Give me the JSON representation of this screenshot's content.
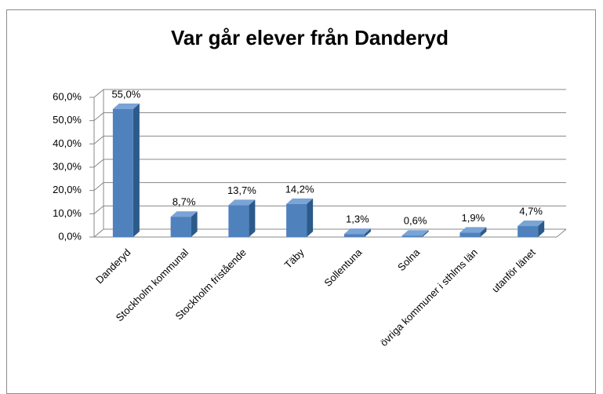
{
  "chart_data": {
    "type": "bar3d",
    "title": "Var går elever från Danderyd",
    "categories": [
      "Danderyd",
      "Stockholm kommunal",
      "Stockholm fristående",
      "Täby",
      "Sollentuna",
      "Solna",
      "övriga kommuner i sthlms län",
      "utanför länet"
    ],
    "values": [
      55.0,
      8.7,
      13.7,
      14.2,
      1.3,
      0.6,
      1.9,
      4.7
    ],
    "value_labels": [
      "55,0%",
      "8,7%",
      "13,7%",
      "14,2%",
      "1,3%",
      "0,6%",
      "1,9%",
      "4,7%"
    ],
    "color": "#4f81bd",
    "ylim": [
      0,
      60
    ],
    "yticks": [
      {
        "value": 0,
        "label": "0,0%"
      },
      {
        "value": 10,
        "label": "10,0%"
      },
      {
        "value": 20,
        "label": "20,0%"
      },
      {
        "value": 30,
        "label": "30,0%"
      },
      {
        "value": 40,
        "label": "40,0%"
      },
      {
        "value": 50,
        "label": "50,0%"
      },
      {
        "value": 60,
        "label": "60,0%"
      }
    ],
    "grid": true
  }
}
